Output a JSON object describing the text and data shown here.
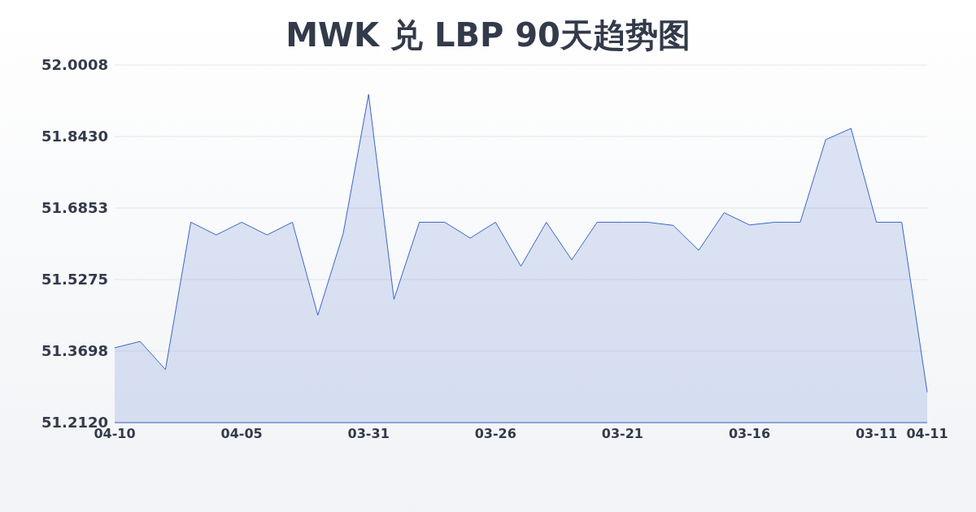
{
  "chart_data": {
    "type": "area",
    "title": "MWK 兑 LBP 90天趋势图",
    "categories": [
      "04-10",
      null,
      null,
      null,
      null,
      "04-05",
      null,
      null,
      null,
      null,
      "03-31",
      null,
      null,
      null,
      null,
      "03-26",
      null,
      null,
      null,
      null,
      "03-21",
      null,
      null,
      null,
      null,
      "03-16",
      null,
      null,
      null,
      null,
      "03-11",
      null,
      "04-11"
    ],
    "series": [
      {
        "color": "#3a66c8",
        "values": [
          51.377,
          51.391,
          51.329,
          51.654,
          51.626,
          51.654,
          51.626,
          51.654,
          51.449,
          51.629,
          51.936,
          51.484,
          51.654,
          51.654,
          51.619,
          51.654,
          51.557,
          51.654,
          51.571,
          51.654,
          51.654,
          51.654,
          51.647,
          51.592,
          51.675,
          51.648,
          51.654,
          51.654,
          51.836,
          51.861,
          51.654,
          51.654,
          51.279
        ]
      }
    ],
    "ylim": [
      51.212,
      52.0008
    ],
    "yticks": [
      {
        "value": 51.212,
        "label": "51.2120"
      },
      {
        "value": 51.3698,
        "label": "51.3698"
      },
      {
        "value": 51.5275,
        "label": "51.5275"
      },
      {
        "value": 51.6853,
        "label": "51.6853"
      },
      {
        "value": 51.843,
        "label": "51.8430"
      },
      {
        "value": 52.0008,
        "label": "52.0008"
      }
    ],
    "grid": "y"
  }
}
